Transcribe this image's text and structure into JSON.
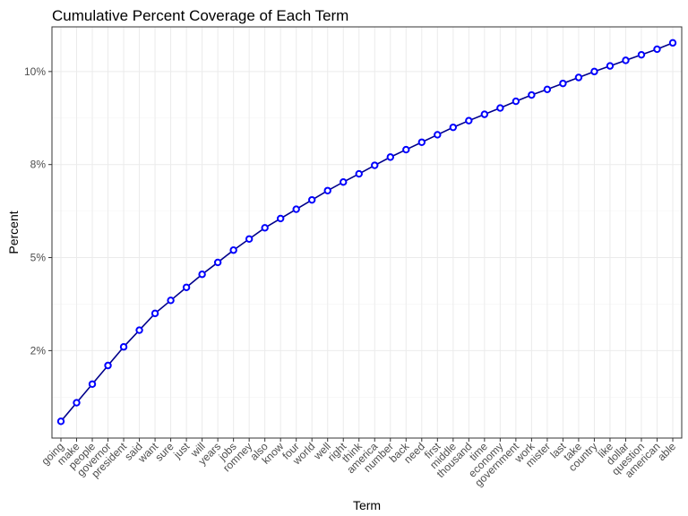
{
  "chart_data": {
    "type": "line",
    "title": "Cumulative Percent Coverage of Each Term",
    "xlabel": "Term",
    "ylabel": "Percent",
    "x": [
      "going",
      "make",
      "people",
      "governor",
      "president",
      "said",
      "want",
      "sure",
      "just",
      "will",
      "years",
      "jobs",
      "romney",
      "also",
      "know",
      "four",
      "world",
      "well",
      "right",
      "think",
      "america",
      "number",
      "back",
      "need",
      "first",
      "middle",
      "thousand",
      "time",
      "economy",
      "government",
      "work",
      "mister",
      "last",
      "take",
      "country",
      "like",
      "dollar",
      "question",
      "american",
      "able"
    ],
    "values": [
      0.6,
      1.1,
      1.6,
      2.1,
      2.6,
      3.05,
      3.5,
      3.85,
      4.2,
      4.55,
      4.87,
      5.2,
      5.5,
      5.8,
      6.05,
      6.3,
      6.55,
      6.8,
      7.03,
      7.25,
      7.48,
      7.7,
      7.9,
      8.1,
      8.3,
      8.5,
      8.68,
      8.85,
      9.02,
      9.2,
      9.37,
      9.52,
      9.68,
      9.84,
      10.0,
      10.15,
      10.3,
      10.45,
      10.6,
      10.77
    ],
    "yticks": [
      2.5,
      5.0,
      7.5,
      10.0
    ],
    "ytick_labels": [
      "2%",
      "5%",
      "8%",
      "10%"
    ],
    "ylim": [
      0.15,
      11.2
    ],
    "grid": true,
    "series_color": "#0000ff",
    "line_color": "#00008b"
  }
}
